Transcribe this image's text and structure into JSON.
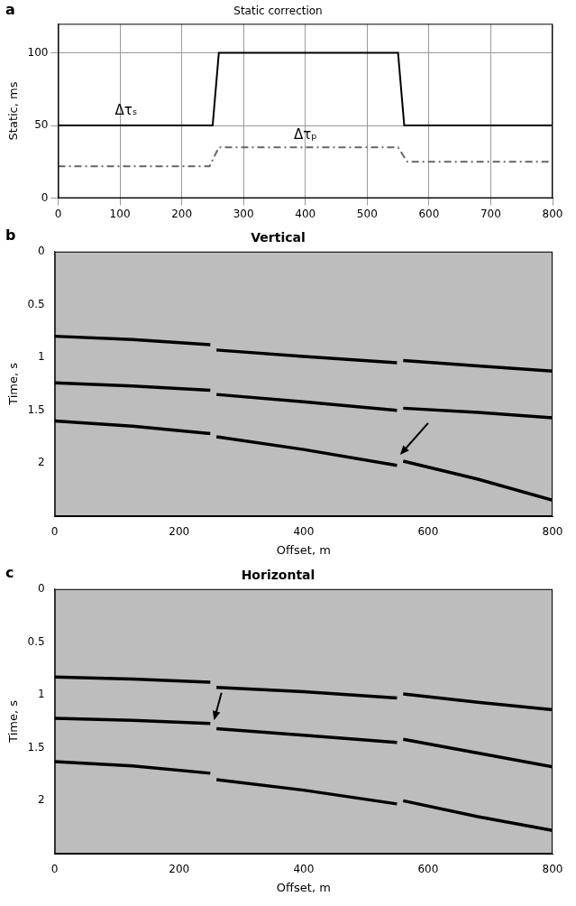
{
  "chart_data": [
    {
      "type": "line",
      "title": "Static correction",
      "letter": "a",
      "ylabel": "Static, ms",
      "xlim": [
        0,
        800
      ],
      "xticks": [
        0,
        100,
        200,
        300,
        400,
        500,
        600,
        700,
        800
      ],
      "ylim": [
        0,
        120
      ],
      "yticks": [
        0,
        50,
        100
      ],
      "grid": true,
      "series": [
        {
          "color": "#000000",
          "line_style": "solid",
          "x": [
            0,
            250,
            260,
            550,
            560,
            800
          ],
          "values": [
            50,
            50,
            100,
            100,
            50,
            50
          ]
        },
        {
          "color": "#666666",
          "line_style": "dashdot",
          "x": [
            0,
            245,
            260,
            550,
            565,
            800
          ],
          "values": [
            22,
            22,
            35,
            35,
            25,
            25
          ]
        }
      ],
      "annotations": [
        {
          "text": "Δτₛ",
          "x": 110,
          "y": 60
        },
        {
          "text": "Δτₚ",
          "x": 400,
          "y": 43
        }
      ]
    },
    {
      "type": "seismic",
      "title": "Vertical",
      "letter": "b",
      "xlabel": "Offset, m",
      "ylabel": "Time, s",
      "xlim": [
        0,
        800
      ],
      "xticks": [
        0,
        200,
        400,
        600,
        800
      ],
      "ylim": [
        0,
        2.5
      ],
      "yticks": [
        0,
        0.5,
        1,
        1.5,
        2
      ],
      "grid": false,
      "series": [
        {
          "color": "#000000",
          "line_style": "solid",
          "x": [
            0,
            125,
            250,
            252,
            260,
            400,
            550,
            552,
            560,
            680,
            800
          ],
          "values": [
            0.8,
            0.83,
            0.88,
            null,
            0.93,
            0.99,
            1.05,
            null,
            1.03,
            1.08,
            1.13
          ]
        },
        {
          "color": "#000000",
          "line_style": "solid",
          "x": [
            0,
            125,
            250,
            252,
            260,
            400,
            550,
            552,
            560,
            680,
            800
          ],
          "values": [
            1.24,
            1.27,
            1.31,
            null,
            1.35,
            1.42,
            1.5,
            null,
            1.48,
            1.52,
            1.57
          ]
        },
        {
          "color": "#000000",
          "line_style": "solid",
          "x": [
            0,
            125,
            250,
            252,
            260,
            400,
            550,
            552,
            560,
            680,
            800
          ],
          "values": [
            1.6,
            1.65,
            1.72,
            null,
            1.75,
            1.87,
            2.02,
            null,
            1.98,
            2.15,
            2.35
          ]
        }
      ],
      "arrows": [
        {
          "from_x": 600,
          "from_y": 1.62,
          "x": 555,
          "y": 1.92
        }
      ]
    },
    {
      "type": "seismic",
      "title": "Horizontal",
      "letter": "c",
      "xlabel": "Offset, m",
      "ylabel": "Time, s",
      "xlim": [
        0,
        800
      ],
      "xticks": [
        0,
        200,
        400,
        600,
        800
      ],
      "ylim": [
        0,
        2.5
      ],
      "yticks": [
        0,
        0.5,
        1,
        1.5,
        2
      ],
      "grid": false,
      "series": [
        {
          "color": "#000000",
          "line_style": "solid",
          "x": [
            0,
            125,
            250,
            252,
            260,
            400,
            550,
            552,
            560,
            680,
            800
          ],
          "values": [
            0.83,
            0.85,
            0.88,
            null,
            0.93,
            0.97,
            1.03,
            null,
            0.99,
            1.07,
            1.14
          ]
        },
        {
          "color": "#000000",
          "line_style": "solid",
          "x": [
            0,
            125,
            250,
            252,
            260,
            400,
            550,
            552,
            560,
            680,
            800
          ],
          "values": [
            1.22,
            1.24,
            1.27,
            null,
            1.32,
            1.38,
            1.45,
            null,
            1.42,
            1.55,
            1.68
          ]
        },
        {
          "color": "#000000",
          "line_style": "solid",
          "x": [
            0,
            125,
            250,
            252,
            260,
            400,
            550,
            552,
            560,
            680,
            800
          ],
          "values": [
            1.63,
            1.67,
            1.74,
            null,
            1.8,
            1.9,
            2.03,
            null,
            2.0,
            2.15,
            2.28
          ]
        }
      ],
      "arrows": [
        {
          "from_x": 268,
          "from_y": 0.98,
          "x": 256,
          "y": 1.24
        }
      ]
    }
  ]
}
